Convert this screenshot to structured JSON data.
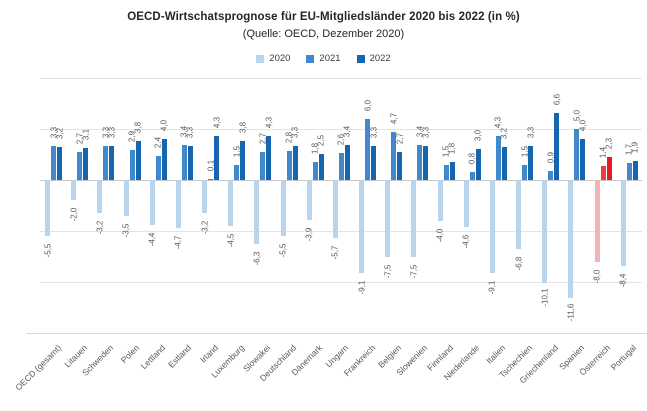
{
  "title": "OECD-Wirtschatsprognose für EU-Mitgliedsländer 2020 bis 2022 (in %)",
  "subtitle": "(Quelle: OECD, Dezember 2020)",
  "colors": {
    "bar_2020": "#b9d5ee",
    "bar_2021": "#4189cd",
    "bar_2022": "#1666af",
    "highlight_2020": "#f4b3b7",
    "highlight_2021": "#ec3b41",
    "highlight_2022": "#e21d24",
    "grid": "#e4e4e4",
    "axis": "#c6c6c6",
    "label": "#595959",
    "title": "#262626"
  },
  "chart_data": {
    "type": "bar",
    "title": "OECD-Wirtschatsprognose für EU-Mitgliedsländer 2020 bis 2022 (in %)",
    "subtitle": "(Quelle: OECD, Dezember 2020)",
    "legend_position": "top",
    "ylim": [
      -15,
      11
    ],
    "gridlines": [
      10,
      5,
      -5,
      -10
    ],
    "bottom_border_value": -15,
    "data_labels": "rotated-90",
    "decimal_separator": ",",
    "highlight_category": "Österreich",
    "categories": [
      "OECD (gesamt)",
      "Litauen",
      "Schweden",
      "Polen",
      "Lettland",
      "Estland",
      "Irland",
      "Luxemburg",
      "Slowakei",
      "Deutschland",
      "Dänemark",
      "Ungarn",
      "Frankreich",
      "Belgien",
      "Slowenien",
      "Finnland",
      "Niederlande",
      "Italien",
      "Tschechien",
      "Griechenland",
      "Spanien",
      "Österreich",
      "Portugal"
    ],
    "series": [
      {
        "name": "2020",
        "values": [
          -5.5,
          -2.0,
          -3.2,
          -3.5,
          -4.4,
          -4.7,
          -3.2,
          -4.5,
          -6.3,
          -5.5,
          -3.9,
          -5.7,
          -9.1,
          -7.5,
          -7.5,
          -4.0,
          -4.6,
          -9.1,
          -6.8,
          -10.1,
          -11.6,
          -8.0,
          -8.4
        ],
        "labels": [
          "-5,5",
          "-2,0",
          "-3,2",
          "-3,5",
          "-4,4",
          "-4,7",
          "-3,2",
          "-4,5",
          "-6,3",
          "-5,5",
          "-3,9",
          "-5,7",
          "-9,1",
          "-7,5",
          "-7,5",
          "-4,0",
          "-4,6",
          "-9,1",
          "-6,8",
          "-10,1",
          "-11,6",
          "-8,0",
          "-8,4"
        ]
      },
      {
        "name": "2021",
        "values": [
          3.3,
          2.7,
          3.3,
          2.9,
          2.4,
          3.4,
          0.1,
          1.5,
          2.7,
          2.8,
          1.8,
          2.6,
          6.0,
          4.7,
          3.4,
          1.5,
          0.8,
          4.3,
          1.5,
          0.9,
          5.0,
          1.4,
          1.7
        ],
        "labels": [
          "3,3",
          "2,7",
          "3,3",
          "2,9",
          "2,4",
          "3,4",
          "0,1",
          "1,5",
          "2,7",
          "2,8",
          "1,8",
          "2,6",
          "6,0",
          "4,7",
          "3,4",
          "1,5",
          "0,8",
          "4,3",
          "1,5",
          "0,9",
          "5,0",
          "1,4",
          "1,7"
        ]
      },
      {
        "name": "2022",
        "values": [
          3.2,
          3.1,
          3.3,
          3.8,
          4.0,
          3.3,
          4.3,
          3.8,
          4.3,
          3.3,
          2.5,
          3.4,
          3.3,
          2.7,
          3.3,
          1.8,
          3.0,
          3.2,
          3.3,
          6.6,
          4.0,
          2.3,
          1.9
        ],
        "labels": [
          "3,2",
          "3,1",
          "3,3",
          "3,8",
          "4,0",
          "3,3",
          "4,3",
          "3,8",
          "4,3",
          "3,3",
          "2,5",
          "3,4",
          "3,3",
          "2,7",
          "3,3",
          "1,8",
          "3,0",
          "3,2",
          "3,3",
          "6,6",
          "4,0",
          "2,3",
          "1,9"
        ]
      }
    ]
  }
}
